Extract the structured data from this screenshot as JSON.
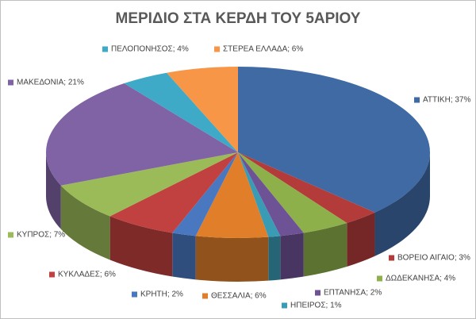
{
  "chart_data": {
    "type": "pie3d",
    "title": "ΜΕΡΙΔΙΟ ΣΤΑ ΚΕΡΔΗ ΤΟΥ 5ΑΡΙΟΥ",
    "values": [
      37,
      3,
      4,
      2,
      1,
      6,
      2,
      6,
      7,
      21,
      4,
      6
    ],
    "value_labels": [
      "ΑΤΤΙΚΗ; 37%",
      "ΒΟΡΕΙΟ ΑΙΓΑΙΟ; 3%",
      "ΔΩΔΕΚΑΝΗΣΑ; 4%",
      "ΕΠΤΑΝΗΣΑ; 2%",
      "ΗΠΕΙΡΟΣ; 1%",
      "ΘΕΣΣΑΛΙΑ; 6%",
      "ΚΡΗΤΗ; 2%",
      "ΚΥΚΛΑΔΕΣ; 6%",
      "ΚΥΠΡΟΣ; 7%",
      "ΜΑΚΕΔΟΝΙΑ; 21%",
      "ΠΕΛΟΠΟΝΗΣΟΣ; 4%",
      "ΣΤΕΡΕΑ ΕΛΛΑΔΑ; 6%"
    ],
    "colors": [
      "#3f6aa4",
      "#b33c3a",
      "#8eb04a",
      "#6e5296",
      "#3a9bb5",
      "#e07e2a",
      "#4a78c0",
      "#c0413f",
      "#9bbb59",
      "#7f63a4",
      "#3eaac8",
      "#f79646"
    ]
  }
}
